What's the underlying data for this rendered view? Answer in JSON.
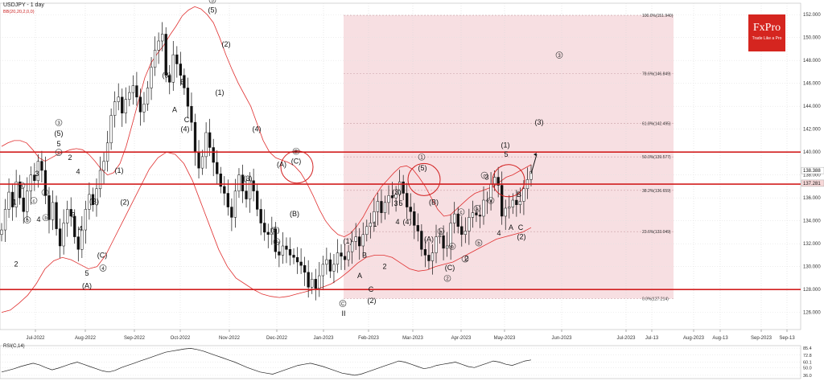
{
  "header": {
    "title": "USDJPY - 1 day",
    "indicator": "BB(20,20,2,0,0)"
  },
  "rsi": {
    "title": "RSI(C,14)",
    "ticks": [
      {
        "v": 85.4,
        "t": "85.4"
      },
      {
        "v": 72.8,
        "t": "72.8"
      },
      {
        "v": 60.1,
        "t": "60.1"
      },
      {
        "v": 50,
        "t": "50.0"
      },
      {
        "v": 36.0,
        "t": "36.0"
      }
    ],
    "values": [
      42,
      45,
      48,
      52,
      55,
      58,
      55,
      50,
      46,
      49,
      53,
      57,
      60,
      56,
      52,
      48,
      44,
      42,
      45,
      50,
      54,
      58,
      62,
      66,
      70,
      74,
      78,
      80,
      82,
      84,
      85,
      83,
      80,
      76,
      72,
      68,
      64,
      60,
      55,
      50,
      46,
      42,
      40,
      38,
      42,
      46,
      50,
      54,
      56,
      58,
      55,
      52,
      48,
      44,
      40,
      38,
      36,
      38,
      42,
      46,
      50,
      54,
      58,
      62,
      60,
      56,
      52,
      48,
      50,
      54,
      56,
      58,
      60,
      56,
      52,
      50,
      54,
      58,
      62,
      60,
      56,
      54,
      58,
      62,
      64
    ]
  },
  "logo": {
    "name": "FxPro",
    "tagline": "Trade Like a Pro"
  },
  "chart_data": {
    "type": "candlestick",
    "title": "USDJPY - 1 day",
    "ylim": [
      124.5,
      153
    ],
    "y_ticks": [
      {
        "v": 126,
        "t": "126.000"
      },
      {
        "v": 128,
        "t": "128.000"
      },
      {
        "v": 130,
        "t": "130.000"
      },
      {
        "v": 132,
        "t": "132.000"
      },
      {
        "v": 134,
        "t": "134.000"
      },
      {
        "v": 136,
        "t": "136.000"
      },
      {
        "v": 138,
        "t": "138.000"
      },
      {
        "v": 140,
        "t": "140.000"
      },
      {
        "v": 142,
        "t": "142.000"
      },
      {
        "v": 144,
        "t": "144.000"
      },
      {
        "v": 146,
        "t": "146.000"
      },
      {
        "v": 148,
        "t": "148.000"
      },
      {
        "v": 150,
        "t": "150.000"
      },
      {
        "v": 152,
        "t": "152.000"
      }
    ],
    "x_ticks": [
      {
        "x": 44,
        "t": "Jul-2022"
      },
      {
        "x": 106,
        "t": "Aug-2022"
      },
      {
        "x": 167,
        "t": "Sep-2022"
      },
      {
        "x": 224,
        "t": "Oct-2022"
      },
      {
        "x": 285,
        "t": "Nov-2022"
      },
      {
        "x": 344,
        "t": "Dec-2022"
      },
      {
        "x": 402,
        "t": "Jan-2023"
      },
      {
        "x": 458,
        "t": "Feb-2023"
      },
      {
        "x": 513,
        "t": "Mar-2023"
      },
      {
        "x": 573,
        "t": "Apr-2023"
      },
      {
        "x": 627,
        "t": "May-2023"
      },
      {
        "x": 698,
        "t": "Jun-2023"
      },
      {
        "x": 778,
        "t": "Jul-2023"
      },
      {
        "x": 810,
        "t": "Jul-13"
      },
      {
        "x": 862,
        "t": "Aug-2023"
      },
      {
        "x": 895,
        "t": "Aug-13"
      },
      {
        "x": 946,
        "t": "Sep-2023"
      },
      {
        "x": 978,
        "t": "Sep-13"
      }
    ],
    "closes": [
      133.2,
      135.0,
      136.5,
      135.2,
      137.4,
      136.0,
      134.8,
      136.6,
      138.0,
      137.5,
      139.2,
      138.4,
      136.2,
      134.1,
      135.6,
      133.3,
      131.8,
      133.8,
      135.0,
      134.4,
      132.6,
      131.5,
      133.2,
      135.0,
      136.3,
      135.4,
      136.8,
      138.4,
      139.2,
      140.8,
      143.2,
      144.4,
      144.8,
      143.4,
      144.6,
      145.2,
      145.8,
      144.8,
      143.5,
      144.2,
      145.6,
      147.4,
      148.9,
      149.7,
      150.3,
      146.7,
      146.1,
      148.5,
      147.7,
      146.7,
      145.6,
      144.0,
      142.6,
      140.0,
      138.6,
      139.6,
      141.7,
      140.4,
      139.1,
      138.1,
      137.0,
      136.4,
      135.2,
      134.3,
      136.6,
      138.0,
      136.6,
      135.9,
      137.5,
      136.6,
      135.0,
      133.8,
      133.0,
      132.8,
      133.3,
      131.3,
      131.0,
      131.8,
      131.5,
      131.0,
      130.8,
      130.4,
      130.1,
      129.5,
      128.2,
      128.9,
      128.1,
      129.2,
      130.2,
      130.6,
      129.6,
      130.2,
      131.2,
      130.9,
      130.6,
      131.3,
      132.2,
      132.6,
      131.8,
      132.8,
      133.5,
      133.8,
      134.8,
      135.7,
      134.7,
      135.6,
      136.2,
      136.0,
      136.3,
      137.4,
      136.4,
      135.2,
      134.8,
      133.6,
      133.1,
      131.5,
      131.0,
      130.5,
      131.2,
      132.6,
      132.7,
      131.6,
      131.8,
      133.8,
      134.6,
      133.5,
      132.8,
      133.1,
      134.3,
      134.7,
      134.5,
      134.4,
      135.8,
      135.8,
      137.2,
      137.8,
      137.1,
      134.4,
      135.1,
      135.2,
      135.8,
      135.4,
      135.7,
      136.8,
      137.6,
      138.3
    ],
    "bb_upper": [
      140.5,
      140.8,
      141.0,
      141.0,
      140.8,
      140.2,
      139.5,
      139.2,
      139.5,
      139.8,
      140.0,
      140.2,
      140.3,
      140.2,
      139.8,
      139.2,
      138.5,
      138.0,
      138.2,
      139.0,
      140.5,
      142.5,
      144.5,
      146.5,
      147.8,
      148.6,
      149.3,
      150.2,
      151.0,
      151.9,
      152.4,
      152.7,
      152.5,
      152.0,
      151.3,
      150.0,
      148.5,
      147.2,
      146.0,
      145.0,
      144.0,
      142.5,
      141.0,
      140.0,
      139.5,
      139.3,
      139.1,
      138.8,
      138.2,
      137.3,
      136.2,
      135.0,
      134.0,
      133.3,
      132.8,
      132.6,
      132.9,
      133.5,
      134.3,
      135.3,
      136.2,
      137.0,
      137.6,
      138.2,
      138.7,
      138.8,
      138.5,
      137.8,
      137.0,
      136.0,
      135.0,
      134.4,
      134.5,
      135.0,
      135.5,
      136.0,
      136.4,
      136.6,
      136.8,
      137.0,
      137.4,
      137.8,
      138.0,
      138.3,
      138.6,
      138.9
    ],
    "bb_lower": [
      126.0,
      126.2,
      126.8,
      127.5,
      128.5,
      129.8,
      130.5,
      130.8,
      130.6,
      130.2,
      129.8,
      130.0,
      131.0,
      132.5,
      134.0,
      135.5,
      137.0,
      138.5,
      139.5,
      140.0,
      139.8,
      139.0,
      137.5,
      135.5,
      133.5,
      131.5,
      130.0,
      129.0,
      128.5,
      128.0,
      127.6,
      127.4,
      127.3,
      127.4,
      127.6,
      127.8,
      128.0,
      128.2,
      128.5,
      129.0,
      129.6,
      130.3,
      130.8,
      131.0,
      131.0,
      130.8,
      130.3,
      129.8,
      129.6,
      129.7,
      130.0,
      130.2,
      130.4,
      130.8,
      131.2,
      131.6,
      132.0,
      132.4,
      132.6,
      132.8,
      133.0,
      133.4
    ],
    "fib_levels": [
      {
        "v": 151.94,
        "t": "100.0%(151.940)"
      },
      {
        "v": 146.849,
        "t": "78.6%(146.849)"
      },
      {
        "v": 142.495,
        "t": "61.8%(142.495)"
      },
      {
        "v": 139.577,
        "t": "50.0%(139.577)"
      },
      {
        "v": 136.659,
        "t": "38.2%(136.659)"
      },
      {
        "v": 133.049,
        "t": "23.6%(133.049)"
      },
      {
        "v": 127.214,
        "t": "0.0%(127.214)"
      }
    ],
    "horizontal_lines": [
      140.0,
      137.2,
      128.0
    ],
    "price_markers": [
      {
        "v": 138.388,
        "t": "138.388",
        "kind": "current"
      },
      {
        "v": 137.281,
        "t": "137.281",
        "kind": "level"
      }
    ],
    "annotations": [
      {
        "x": 18,
        "v": 135.4,
        "t": "1"
      },
      {
        "x": 27,
        "v": 136.9,
        "t": "a",
        "c": 1
      },
      {
        "x": 34,
        "v": 133.9,
        "t": "b",
        "c": 1
      },
      {
        "x": 48,
        "v": 133.9,
        "t": "4"
      },
      {
        "x": 46,
        "v": 137.9,
        "t": "3"
      },
      {
        "x": 42,
        "v": 135.6,
        "t": "c",
        "c": 1
      },
      {
        "x": 20,
        "v": 130.0,
        "t": "2"
      },
      {
        "x": 73,
        "v": 142.4,
        "t": "3",
        "c": 1
      },
      {
        "x": 73,
        "v": 141.4,
        "t": "(5)"
      },
      {
        "x": 73,
        "v": 140.5,
        "t": "5"
      },
      {
        "x": 73,
        "v": 139.8,
        "t": "c",
        "c": 1
      },
      {
        "x": 87,
        "v": 139.3,
        "t": "2"
      },
      {
        "x": 56,
        "v": 136.3,
        "t": "a",
        "c": 1
      },
      {
        "x": 57,
        "v": 134.1,
        "t": "b",
        "c": 1
      },
      {
        "x": 97,
        "v": 138.1,
        "t": "4"
      },
      {
        "x": 91,
        "v": 134.3,
        "t": "3"
      },
      {
        "x": 100,
        "v": 133.1,
        "t": "4"
      },
      {
        "x": 117,
        "v": 135.5,
        "t": "(B)"
      },
      {
        "x": 127,
        "v": 130.8,
        "t": "(C)"
      },
      {
        "x": 128,
        "v": 129.7,
        "t": "4",
        "c": 1
      },
      {
        "x": 108,
        "v": 129.2,
        "t": "5"
      },
      {
        "x": 108,
        "v": 128.1,
        "t": "(A)"
      },
      {
        "x": 148,
        "v": 138.2,
        "t": "(1)"
      },
      {
        "x": 155,
        "v": 135.4,
        "t": "(2)"
      },
      {
        "x": 207,
        "v": 146.5,
        "t": "(3)"
      },
      {
        "x": 227,
        "v": 145.9,
        "t": "B"
      },
      {
        "x": 217,
        "v": 143.5,
        "t": "A"
      },
      {
        "x": 232,
        "v": 142.6,
        "t": "C"
      },
      {
        "x": 230,
        "v": 141.8,
        "t": "(4)"
      },
      {
        "x": 264,
        "v": 153.1,
        "t": "5",
        "c": 1
      },
      {
        "x": 264,
        "v": 152.2,
        "t": "(5)"
      },
      {
        "x": 281,
        "v": 149.2,
        "t": "(2)"
      },
      {
        "x": 273,
        "v": 145.0,
        "t": "(1)"
      },
      {
        "x": 319,
        "v": 141.8,
        "t": "(4)"
      },
      {
        "x": 308,
        "v": 137.5,
        "t": "(3)"
      },
      {
        "x": 368,
        "v": 139.9,
        "t": "B",
        "c": 1
      },
      {
        "x": 350,
        "v": 138.7,
        "t": "(A)"
      },
      {
        "x": 368,
        "v": 139.0,
        "t": "(C)"
      },
      {
        "x": 366,
        "v": 134.4,
        "t": "(B)"
      },
      {
        "x": 342,
        "v": 133.0,
        "t": "(5)"
      },
      {
        "x": 344,
        "v": 132.0,
        "t": "A",
        "c": 1
      },
      {
        "x": 432,
        "v": 132.0,
        "t": "(1)"
      },
      {
        "x": 426,
        "v": 126.6,
        "t": "C",
        "c": 1
      },
      {
        "x": 427,
        "v": 125.7,
        "t": "II"
      },
      {
        "x": 453,
        "v": 130.8,
        "t": "B"
      },
      {
        "x": 447,
        "v": 129.0,
        "t": "A"
      },
      {
        "x": 461,
        "v": 127.8,
        "t": "C"
      },
      {
        "x": 462,
        "v": 126.8,
        "t": "(2)"
      },
      {
        "x": 466,
        "v": 133.5,
        "t": "1"
      },
      {
        "x": 478,
        "v": 129.8,
        "t": "2"
      },
      {
        "x": 493,
        "v": 136.3,
        "t": "(3)"
      },
      {
        "x": 492,
        "v": 135.3,
        "t": "3"
      },
      {
        "x": 498,
        "v": 135.3,
        "t": "5"
      },
      {
        "x": 494,
        "v": 133.7,
        "t": "4"
      },
      {
        "x": 506,
        "v": 133.7,
        "t": "(4)"
      },
      {
        "x": 524,
        "v": 139.4,
        "t": "1",
        "c": 1
      },
      {
        "x": 525,
        "v": 138.4,
        "t": "(5)"
      },
      {
        "x": 539,
        "v": 135.4,
        "t": "(B)"
      },
      {
        "x": 533,
        "v": 132.2,
        "t": "(A)"
      },
      {
        "x": 559,
        "v": 129.7,
        "t": "(C)"
      },
      {
        "x": 556,
        "v": 128.8,
        "t": "2",
        "c": 1
      },
      {
        "x": 548,
        "v": 132.9,
        "t": "a",
        "c": 1
      },
      {
        "x": 562,
        "v": 131.6,
        "t": "b",
        "c": 1
      },
      {
        "x": 573,
        "v": 134.6,
        "t": "c",
        "c": 1
      },
      {
        "x": 593,
        "v": 134.9,
        "t": "a",
        "c": 1
      },
      {
        "x": 595,
        "v": 131.9,
        "t": "b",
        "c": 1
      },
      {
        "x": 578,
        "v": 130.5,
        "t": "1",
        "c": 1
      },
      {
        "x": 580,
        "v": 130.5,
        "t": "2"
      },
      {
        "x": 602,
        "v": 137.8,
        "t": "c",
        "c": 1
      },
      {
        "x": 605,
        "v": 137.6,
        "t": "3"
      },
      {
        "x": 610,
        "v": 135.6,
        "t": "a",
        "c": 1
      },
      {
        "x": 620,
        "v": 132.7,
        "t": "4"
      },
      {
        "x": 628,
        "v": 140.4,
        "t": "(1)"
      },
      {
        "x": 629,
        "v": 139.6,
        "t": "5"
      },
      {
        "x": 635,
        "v": 133.2,
        "t": "A"
      },
      {
        "x": 645,
        "v": 136.1,
        "t": "B"
      },
      {
        "x": 647,
        "v": 133.2,
        "t": "C"
      },
      {
        "x": 648,
        "v": 132.4,
        "t": "(2)"
      },
      {
        "x": 670,
        "v": 142.4,
        "t": "(3)"
      },
      {
        "x": 695,
        "v": 148.3,
        "t": "3",
        "c": 1
      }
    ]
  }
}
